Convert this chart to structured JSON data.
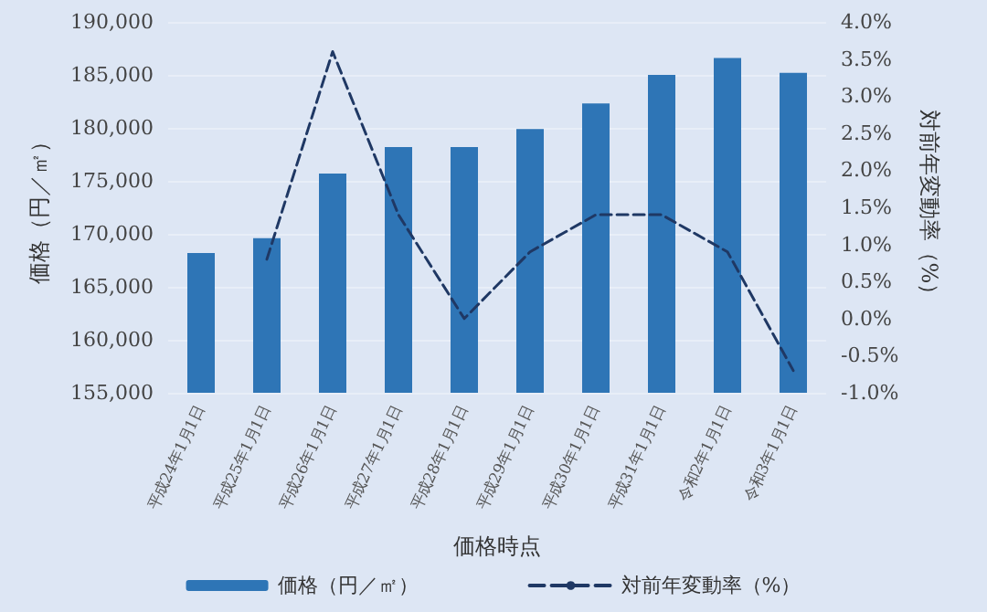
{
  "chart_data": {
    "type": "bar",
    "xlabel": "価格時点",
    "ylabel": "価格（円／㎡）",
    "y2label": "対前年変動率（%）",
    "categories": [
      "平成24年1月1日",
      "平成25年1月1日",
      "平成26年1月1日",
      "平成27年1月1日",
      "平成28年1月1日",
      "平成29年1月1日",
      "平成30年1月1日",
      "平成31年1月1日",
      "令和2年1月1日",
      "令和3年1月1日"
    ],
    "series": [
      {
        "name": "価格（円／㎡）",
        "color": "#2e75b6",
        "values": [
          168200,
          169600,
          175700,
          178200,
          178200,
          179900,
          182300,
          185000,
          186600,
          185200
        ]
      },
      {
        "name": "対前年変動率（%）",
        "type": "line",
        "axis": "y2",
        "color": "#1f3864",
        "line_style": "dashed",
        "marker": "none",
        "values": [
          null,
          0.8,
          3.6,
          1.4,
          0.0,
          0.9,
          1.4,
          1.4,
          0.9,
          -0.7
        ]
      }
    ],
    "ylim": [
      155000,
      190000
    ],
    "yticks": [
      {
        "value": 155000,
        "label": "155,000"
      },
      {
        "value": 160000,
        "label": "160,000"
      },
      {
        "value": 165000,
        "label": "165,000"
      },
      {
        "value": 170000,
        "label": "170,000"
      },
      {
        "value": 175000,
        "label": "175,000"
      },
      {
        "value": 180000,
        "label": "180,000"
      },
      {
        "value": 185000,
        "label": "185,000"
      },
      {
        "value": 190000,
        "label": "190,000"
      }
    ],
    "y2lim": [
      -1,
      4
    ],
    "y2ticks": [
      {
        "value": -1,
        "label": "-1.0%"
      },
      {
        "value": -0.5,
        "label": "-0.5%"
      },
      {
        "value": 0,
        "label": "0.0%"
      },
      {
        "value": 0.5,
        "label": "0.5%"
      },
      {
        "value": 1,
        "label": "1.0%"
      },
      {
        "value": 1.5,
        "label": "1.5%"
      },
      {
        "value": 2,
        "label": "2.0%"
      },
      {
        "value": 2.5,
        "label": "2.5%"
      },
      {
        "value": 3,
        "label": "3.0%"
      },
      {
        "value": 3.5,
        "label": "3.5%"
      },
      {
        "value": 4,
        "label": "4.0%"
      }
    ],
    "grid": "y",
    "legend": "bottom"
  }
}
